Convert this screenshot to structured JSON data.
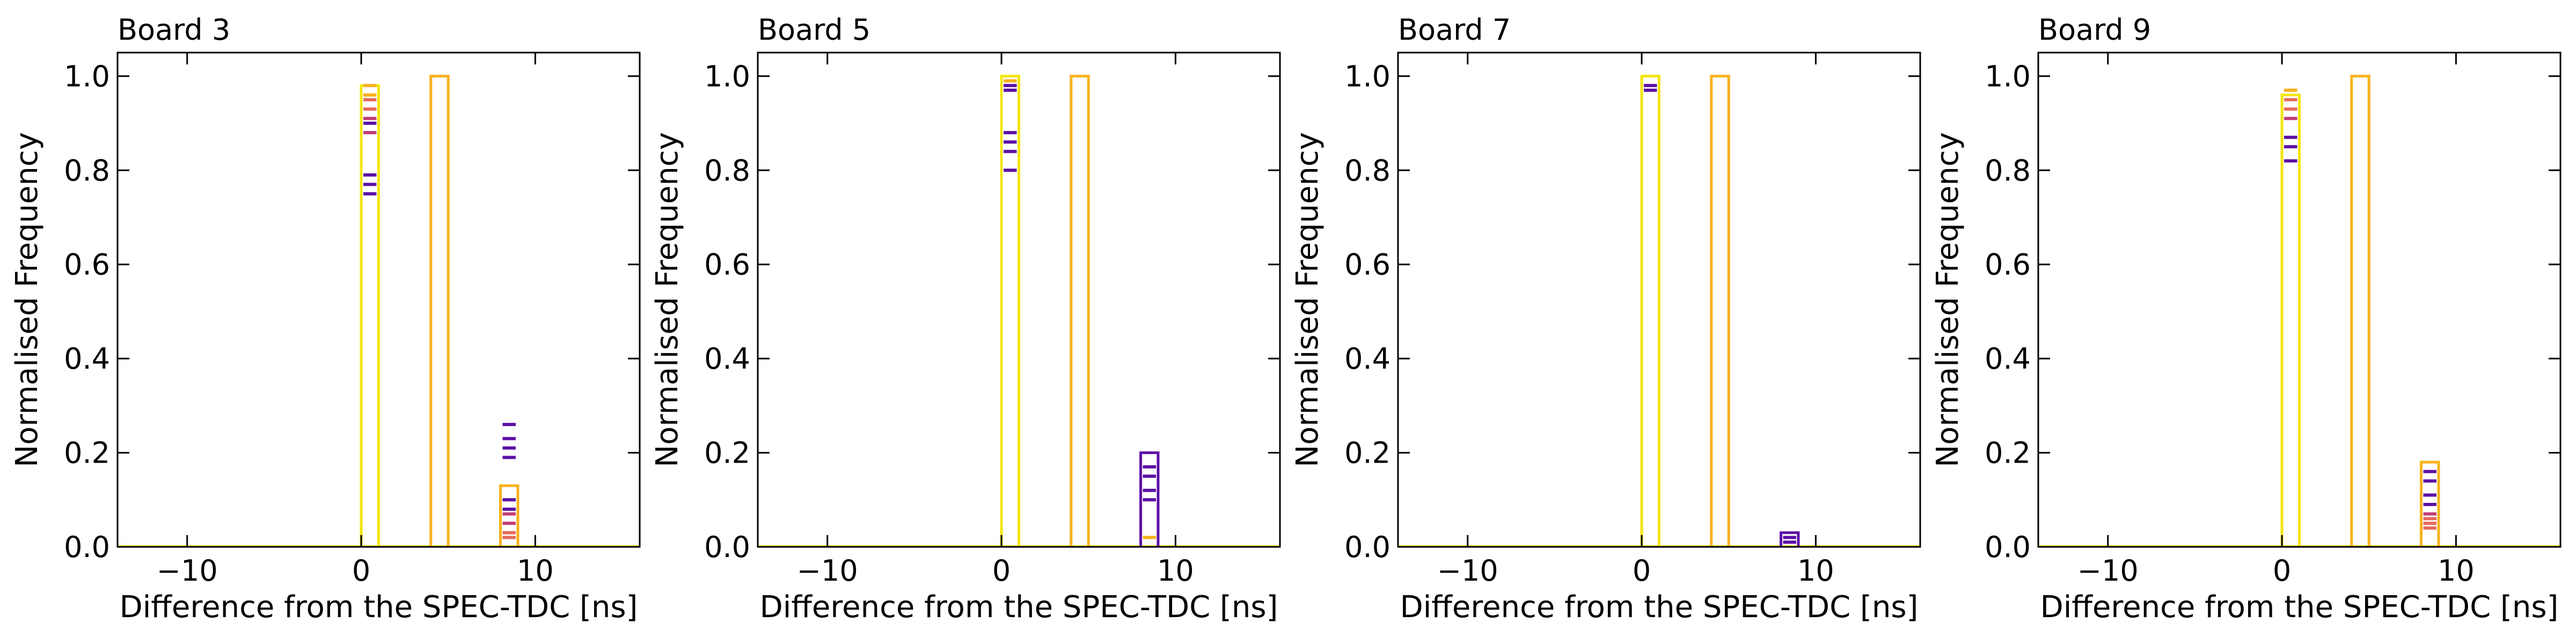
{
  "chart_data": [
    {
      "type": "histogram",
      "title": "Board 3",
      "xlabel": "Difference from the SPEC-TDC [ns]",
      "ylabel": "Normalised Frequency",
      "xlim": [
        -14,
        16
      ],
      "ylim": [
        0,
        1.05
      ],
      "xticks": [
        -10,
        0,
        10
      ],
      "yticks": [
        0.0,
        0.2,
        0.4,
        0.6,
        0.8,
        1.0
      ],
      "grid": false,
      "bins": [
        {
          "x0": 0,
          "x1": 1,
          "color": "#f5e50c",
          "height": 0.98
        },
        {
          "x0": 4,
          "x1": 5,
          "color": "#f9b11c",
          "height": 1.0
        },
        {
          "x0": 8,
          "x1": 9,
          "color": "#f9b11c",
          "height": 0.13
        }
      ],
      "series_levels": [
        {
          "x0": 0,
          "x1": 1,
          "color": "#f9b11c",
          "values": [
            0.98,
            0.96
          ]
        },
        {
          "x0": 0,
          "x1": 1,
          "color": "#e56a5a",
          "values": [
            0.95,
            0.93
          ]
        },
        {
          "x0": 0,
          "x1": 1,
          "color": "#c13c78",
          "values": [
            0.91,
            0.88
          ]
        },
        {
          "x0": 0,
          "x1": 1,
          "color": "#5c10a6",
          "values": [
            0.9,
            0.79,
            0.77,
            0.75
          ]
        },
        {
          "x0": 8,
          "x1": 9,
          "color": "#5c10a6",
          "values": [
            0.26,
            0.23,
            0.21,
            0.19,
            0.1,
            0.08
          ]
        },
        {
          "x0": 8,
          "x1": 9,
          "color": "#c13c78",
          "values": [
            0.07,
            0.05
          ]
        },
        {
          "x0": 8,
          "x1": 9,
          "color": "#e56a5a",
          "values": [
            0.03,
            0.02
          ]
        }
      ]
    },
    {
      "type": "histogram",
      "title": "Board 5",
      "xlabel": "Difference from the SPEC-TDC [ns]",
      "ylabel": "Normalised Frequency",
      "xlim": [
        -14,
        16
      ],
      "ylim": [
        0,
        1.05
      ],
      "xticks": [
        -10,
        0,
        10
      ],
      "yticks": [
        0.0,
        0.2,
        0.4,
        0.6,
        0.8,
        1.0
      ],
      "grid": false,
      "bins": [
        {
          "x0": 0,
          "x1": 1,
          "color": "#f5e50c",
          "height": 1.0
        },
        {
          "x0": 4,
          "x1": 5,
          "color": "#f9b11c",
          "height": 1.0
        },
        {
          "x0": 8,
          "x1": 9,
          "color": "#5c10a6",
          "height": 0.2
        }
      ],
      "series_levels": [
        {
          "x0": 0,
          "x1": 1,
          "color": "#f9b11c",
          "values": [
            0.99
          ]
        },
        {
          "x0": 0,
          "x1": 1,
          "color": "#5c10a6",
          "values": [
            0.98,
            0.97,
            0.88,
            0.86,
            0.84,
            0.8
          ]
        },
        {
          "x0": 8,
          "x1": 9,
          "color": "#5c10a6",
          "values": [
            0.17,
            0.15,
            0.12,
            0.1
          ]
        },
        {
          "x0": 8,
          "x1": 9,
          "color": "#f9b11c",
          "values": [
            0.02
          ]
        }
      ]
    },
    {
      "type": "histogram",
      "title": "Board 7",
      "xlabel": "Difference from the SPEC-TDC [ns]",
      "ylabel": "Normalised Frequency",
      "xlim": [
        -14,
        16
      ],
      "ylim": [
        0,
        1.05
      ],
      "xticks": [
        -10,
        0,
        10
      ],
      "yticks": [
        0.0,
        0.2,
        0.4,
        0.6,
        0.8,
        1.0
      ],
      "grid": false,
      "bins": [
        {
          "x0": 0,
          "x1": 1,
          "color": "#f5e50c",
          "height": 1.0
        },
        {
          "x0": 4,
          "x1": 5,
          "color": "#f9b11c",
          "height": 1.0
        },
        {
          "x0": 8,
          "x1": 9,
          "color": "#5c10a6",
          "height": 0.03
        }
      ],
      "series_levels": [
        {
          "x0": 0,
          "x1": 1,
          "color": "#5c10a6",
          "values": [
            0.98,
            0.97
          ]
        },
        {
          "x0": 8,
          "x1": 9,
          "color": "#5c10a6",
          "values": [
            0.02,
            0.01
          ]
        }
      ]
    },
    {
      "type": "histogram",
      "title": "Board 9",
      "xlabel": "Difference from the SPEC-TDC [ns]",
      "ylabel": "Normalised Frequency",
      "xlim": [
        -14,
        16
      ],
      "ylim": [
        0,
        1.05
      ],
      "xticks": [
        -10,
        0,
        10
      ],
      "yticks": [
        0.0,
        0.2,
        0.4,
        0.6,
        0.8,
        1.0
      ],
      "grid": false,
      "bins": [
        {
          "x0": 0,
          "x1": 1,
          "color": "#f5e50c",
          "height": 0.96
        },
        {
          "x0": 4,
          "x1": 5,
          "color": "#f9b11c",
          "height": 1.0
        },
        {
          "x0": 8,
          "x1": 9,
          "color": "#f9b11c",
          "height": 0.18
        }
      ],
      "series_levels": [
        {
          "x0": 0,
          "x1": 1,
          "color": "#f9b11c",
          "values": [
            0.97
          ]
        },
        {
          "x0": 0,
          "x1": 1,
          "color": "#e56a5a",
          "values": [
            0.95,
            0.93
          ]
        },
        {
          "x0": 0,
          "x1": 1,
          "color": "#c13c78",
          "values": [
            0.91
          ]
        },
        {
          "x0": 0,
          "x1": 1,
          "color": "#5c10a6",
          "values": [
            0.87,
            0.85,
            0.82
          ]
        },
        {
          "x0": 8,
          "x1": 9,
          "color": "#5c10a6",
          "values": [
            0.16,
            0.14,
            0.11,
            0.09
          ]
        },
        {
          "x0": 8,
          "x1": 9,
          "color": "#c13c78",
          "values": [
            0.07
          ]
        },
        {
          "x0": 8,
          "x1": 9,
          "color": "#e56a5a",
          "values": [
            0.06,
            0.05,
            0.04
          ]
        }
      ]
    }
  ]
}
